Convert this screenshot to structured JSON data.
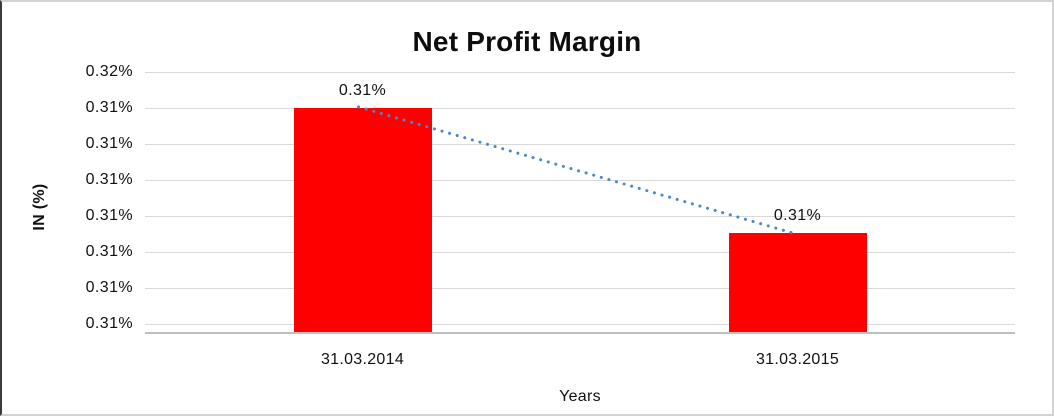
{
  "chart_data": {
    "type": "bar",
    "title": "Net Profit Margin",
    "xlabel": "Years",
    "ylabel": "IN (%)",
    "categories": [
      "31.03.2014",
      "31.03.2015"
    ],
    "series": [
      {
        "name": "Net Profit Margin",
        "labels_display": [
          "0.31%",
          "0.31%"
        ],
        "values_pct_estimated": [
          0.3148,
          0.3106
        ]
      }
    ],
    "y_ticks": [
      "0.32%",
      "0.31%",
      "0.31%",
      "0.31%",
      "0.31%",
      "0.31%",
      "0.31%",
      " 0.31%"
    ],
    "ylim_pct": [
      0.3073,
      0.316
    ],
    "gridlines": true,
    "legend": "none",
    "trendline": {
      "type": "linear",
      "style": "dotted"
    }
  },
  "colors": {
    "bar": "#ff0000",
    "trendline": "#4a86c8",
    "gridline": "#d9d9d9",
    "axis_line": "#bfbfbf",
    "text": "#111111",
    "background": "#ffffff"
  }
}
